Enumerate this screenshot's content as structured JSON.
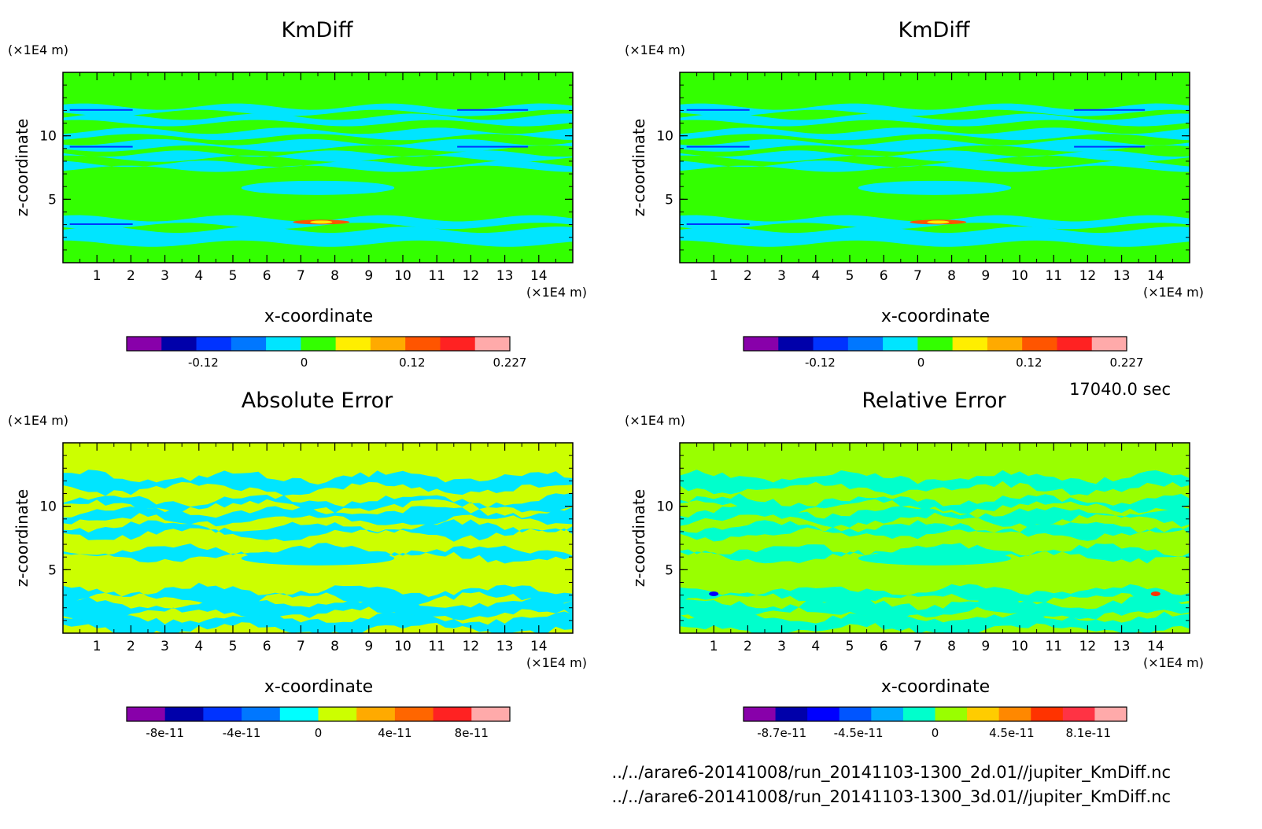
{
  "time_label": "17040.0 sec",
  "footer": {
    "file_2d": "../../arare6-20141008/run_20141103-1300_2d.01//jupiter_KmDiff.nc",
    "file_3d": "../../arare6-20141008/run_20141103-1300_3d.01//jupiter_KmDiff.nc"
  },
  "chart_data": [
    {
      "type": "heatmap",
      "title": "KmDiff",
      "xlabel": "x-coordinate",
      "ylabel": "z-coordinate",
      "x_unit": "(×1E4 m)",
      "y_unit": "(×1E4 m)",
      "xlim": [
        0,
        15
      ],
      "ylim": [
        0,
        15
      ],
      "x_ticks": [
        "1",
        "2",
        "3",
        "4",
        "5",
        "6",
        "7",
        "8",
        "9",
        "10",
        "11",
        "12",
        "13",
        "14"
      ],
      "y_ticks": [
        "5",
        "10"
      ],
      "background": "#33ff00",
      "band_color": "#00e5ff",
      "colorbar": {
        "colors": [
          "#8800aa",
          "#0000aa",
          "#0033ff",
          "#0077ff",
          "#00e5ff",
          "#33ff00",
          "#ffee00",
          "#ffaa00",
          "#ff5500",
          "#ff2222",
          "#ffaaaa"
        ],
        "tick_labels": [
          "-0.12",
          "0",
          "0.12",
          "0.227"
        ]
      }
    },
    {
      "type": "heatmap",
      "title": "KmDiff",
      "xlabel": "x-coordinate",
      "ylabel": "z-coordinate",
      "x_unit": "(×1E4 m)",
      "y_unit": "(×1E4 m)",
      "xlim": [
        0,
        15
      ],
      "ylim": [
        0,
        15
      ],
      "x_ticks": [
        "1",
        "2",
        "3",
        "4",
        "5",
        "6",
        "7",
        "8",
        "9",
        "10",
        "11",
        "12",
        "13",
        "14"
      ],
      "y_ticks": [
        "5",
        "10"
      ],
      "background": "#33ff00",
      "band_color": "#00e5ff",
      "colorbar": {
        "colors": [
          "#8800aa",
          "#0000aa",
          "#0033ff",
          "#0077ff",
          "#00e5ff",
          "#33ff00",
          "#ffee00",
          "#ffaa00",
          "#ff5500",
          "#ff2222",
          "#ffaaaa"
        ],
        "tick_labels": [
          "-0.12",
          "0",
          "0.12",
          "0.227"
        ]
      }
    },
    {
      "type": "heatmap",
      "title": "Absolute Error",
      "xlabel": "x-coordinate",
      "ylabel": "z-coordinate",
      "x_unit": "(×1E4 m)",
      "y_unit": "(×1E4 m)",
      "xlim": [
        0,
        15
      ],
      "ylim": [
        0,
        15
      ],
      "x_ticks": [
        "1",
        "2",
        "3",
        "4",
        "5",
        "6",
        "7",
        "8",
        "9",
        "10",
        "11",
        "12",
        "13",
        "14"
      ],
      "y_ticks": [
        "5",
        "10"
      ],
      "background": "#ccff00",
      "band_color": "#00e5ff",
      "colorbar": {
        "colors": [
          "#8800aa",
          "#0000aa",
          "#0033ff",
          "#0077ff",
          "#00ffff",
          "#ccff00",
          "#ffaa00",
          "#ff6600",
          "#ff2222",
          "#ffaaaa"
        ],
        "tick_labels": [
          "-8e-11",
          "-4e-11",
          "0",
          "4e-11",
          "8e-11"
        ]
      }
    },
    {
      "type": "heatmap",
      "title": "Relative Error",
      "xlabel": "x-coordinate",
      "ylabel": "z-coordinate",
      "x_unit": "(×1E4 m)",
      "y_unit": "(×1E4 m)",
      "xlim": [
        0,
        15
      ],
      "ylim": [
        0,
        15
      ],
      "x_ticks": [
        "1",
        "2",
        "3",
        "4",
        "5",
        "6",
        "7",
        "8",
        "9",
        "10",
        "11",
        "12",
        "13",
        "14"
      ],
      "y_ticks": [
        "5",
        "10"
      ],
      "background": "#99ff00",
      "band_color": "#00ffcc",
      "colorbar": {
        "colors": [
          "#8800aa",
          "#0000aa",
          "#0000ff",
          "#0055ff",
          "#00aaff",
          "#00ffcc",
          "#99ff00",
          "#ffcc00",
          "#ff8800",
          "#ff3300",
          "#ff3344",
          "#ffaaaa"
        ],
        "tick_labels": [
          "-8.7e-11",
          "-4.5e-11",
          "0",
          "4.5e-11",
          "8.1e-11"
        ]
      }
    }
  ]
}
